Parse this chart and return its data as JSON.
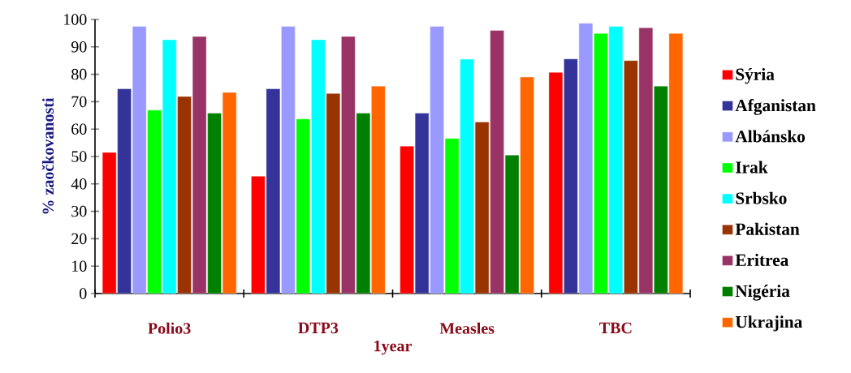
{
  "chart_data": {
    "type": "bar",
    "xlabel": "1year",
    "ylabel": "% zaočkovanosti",
    "categories": [
      "Polio3",
      "DTP3",
      "Measles",
      "TBC"
    ],
    "series": [
      {
        "name": "Sýria",
        "color": "#ff0000",
        "values": [
          51.5,
          42.8,
          53.8,
          80.7
        ]
      },
      {
        "name": "Afganistan",
        "color": "#333399",
        "values": [
          74.7,
          74.7,
          65.8,
          85.6
        ]
      },
      {
        "name": "Albánsko",
        "color": "#9999ff",
        "values": [
          97.5,
          97.5,
          97.5,
          98.6
        ]
      },
      {
        "name": "Irak",
        "color": "#00ff00",
        "values": [
          66.9,
          63.7,
          56.6,
          94.9
        ]
      },
      {
        "name": "Srbsko",
        "color": "#00ffff",
        "values": [
          92.6,
          92.6,
          85.5,
          97.5
        ]
      },
      {
        "name": "Pakistan",
        "color": "#993300",
        "values": [
          71.9,
          73.0,
          62.6,
          85.0
        ]
      },
      {
        "name": "Eritrea",
        "color": "#993366",
        "values": [
          93.8,
          93.8,
          96.0,
          97.0
        ]
      },
      {
        "name": "Nigéria",
        "color": "#008000",
        "values": [
          65.8,
          65.8,
          50.5,
          75.7
        ]
      },
      {
        "name": "Ukrajina",
        "color": "#ff6600",
        "values": [
          73.4,
          75.7,
          79.0,
          94.9
        ]
      }
    ],
    "ylim": [
      0,
      100
    ],
    "yticks": [
      0,
      10,
      20,
      30,
      40,
      50,
      60,
      70,
      80,
      90,
      100
    ],
    "grid": false,
    "legend": "right"
  }
}
